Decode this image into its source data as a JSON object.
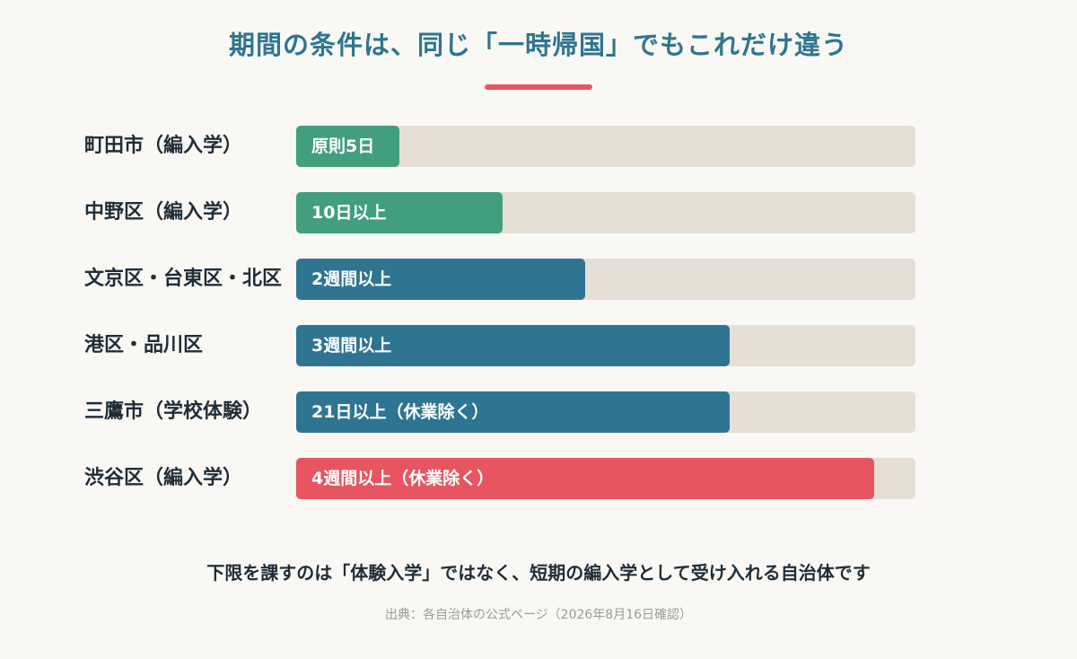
{
  "title": "期間の条件は、同じ「一時帰国」でもこれだけ違う",
  "accent_color": "#e85560",
  "chart_data": {
    "type": "bar",
    "orientation": "horizontal",
    "categories": [
      "町田市（編入学）",
      "中野区（編入学）",
      "文京区・台東区・北区",
      "港区・品川区",
      "三鷹市（学校体験）",
      "渋谷区（編入学）"
    ],
    "values": [
      5,
      10,
      14,
      21,
      21,
      28
    ],
    "value_unit": "日",
    "data_labels": [
      "原則5日",
      "10日以上",
      "2週間以上",
      "3週間以上",
      "21日以上（休業除く）",
      "4週間以上（休業除く）"
    ],
    "bar_colors": [
      "#419f7d",
      "#419f7d",
      "#2e7592",
      "#2e7592",
      "#2e7592",
      "#e85560"
    ],
    "track_color": "#e6dfd6",
    "xlim": [
      0,
      30
    ],
    "grid": false
  },
  "caption": "下限を課すのは「体験入学」ではなく、短期の編入学として受け入れる自治体です",
  "source": "出典：各自治体の公式ページ（2026年8月16日確認）"
}
